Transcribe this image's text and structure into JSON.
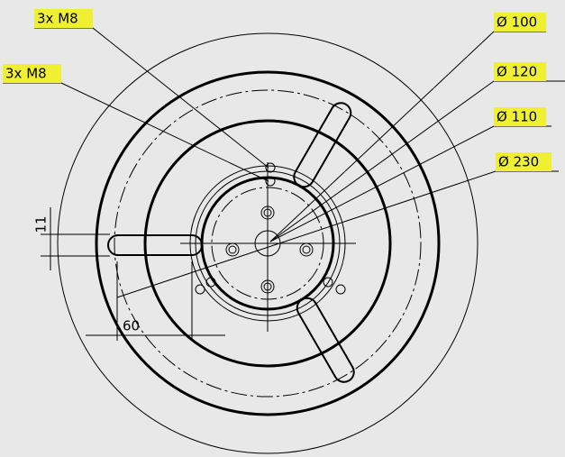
{
  "callouts": [
    {
      "label": "3x M8"
    },
    {
      "label": "3x M8"
    },
    {
      "label": "Ø 100"
    },
    {
      "label": "Ø 120"
    },
    {
      "label": "Ø 110"
    },
    {
      "label": "Ø 230"
    }
  ],
  "dimensions": {
    "slot_width": "11",
    "slot_offset": "60"
  }
}
